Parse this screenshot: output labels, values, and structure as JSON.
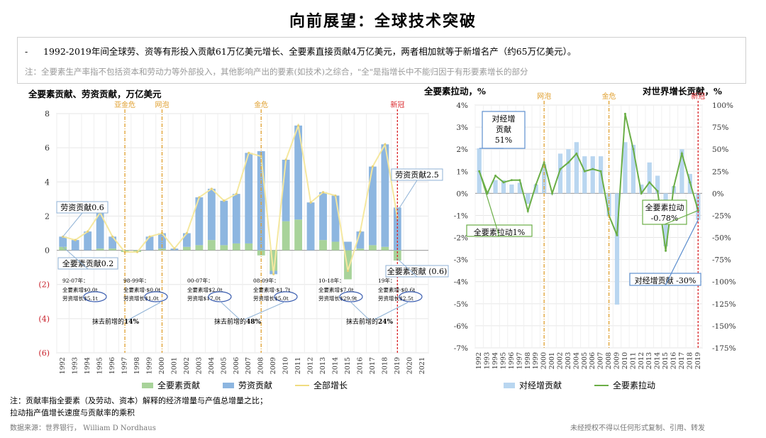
{
  "header": {
    "title": "向前展望：全球技术突破",
    "bullet": "-",
    "note_main": "1992-2019年间全球劳、资等有形投入贡献61万亿美元增长、全要素直接贡献4万亿美元，两者相加就等于新增名产（约65万亿美元）。",
    "note_gray": "注：全要素生产率指不包括资本和劳动力等外部投入，其他影响产出的要素(如技术)之综合，\"全\"是指增长中不能归因于有形要素增长的部分"
  },
  "colors": {
    "tfp_bar": "#a8d39a",
    "labor_bar": "#8db6e0",
    "total_line": "#f5e8a0",
    "tfp_line": "#6aae46",
    "contrib_bar": "#b9d6f0",
    "crisis": "#e0a030",
    "covid": "#d9262a"
  },
  "left_chart": {
    "title": "全要素贡献、劳资贡献，万亿美元",
    "events": [
      "亚金危",
      "网泡",
      "金危",
      "新冠"
    ],
    "y_tick_labels": [
      "8",
      "6",
      "4",
      "2",
      "0",
      "(2)",
      "(4)",
      "(6)"
    ],
    "callouts": {
      "labor": "劳资贡献0.6",
      "tfp": "全要素贡献0.2",
      "labor_end": "劳资贡献2.5",
      "tfp_end": "全要素贡献 (0.6)"
    },
    "periods": [
      {
        "title": "92-07年：",
        "tfp": "全要素增$0.0t",
        "labor": "劳资增长$5.1t"
      },
      {
        "title": "98-99年：",
        "tfp": "全要素增-$0.0t",
        "labor": "劳资增长$1.0t"
      },
      {
        "title": "00-07年：",
        "tfp": "全要素增$2.0t",
        "labor": "劳资增$17.0t"
      },
      {
        "title": "08-09年：",
        "tfp": "全要素增-$1.7t",
        "labor": "劳资增长$5.0t"
      },
      {
        "title": "10-18年：",
        "tfp": "全要素增$7.0t",
        "labor": "劳资增长$29.9t"
      },
      {
        "title": "19年：",
        "tfp": "全要素增-$0.6t",
        "labor": "劳资增长$2.5t"
      }
    ],
    "share_notes": [
      {
        "prefix": "抹去前增的",
        "value": "14%"
      },
      {
        "prefix": "抹去前增的",
        "value": "48%"
      },
      {
        "prefix": "抹去前增的",
        "value": "24%"
      }
    ]
  },
  "right_chart": {
    "title_left": "全要素拉动，%",
    "title_right": "对世界增长贡献，%",
    "events": [
      "网泡",
      "金危",
      "新冠"
    ],
    "y_left_labels": [
      "4%",
      "3%",
      "2%",
      "1%",
      "0%",
      "-1%",
      "-2%",
      "-3%",
      "-4%",
      "-5%",
      "-6%",
      "-7%"
    ],
    "y_right_labels": [
      "100%",
      "75%",
      "50%",
      "25%",
      "0%",
      "-25%",
      "-50%",
      "-75%",
      "-100%",
      "-125%",
      "-150%",
      "-175%"
    ],
    "callouts": {
      "contrib_start": "对经增贡献51%",
      "tfp_start": "全要素拉动1%",
      "tfp_end": "全要素拉动 -0.78%",
      "contrib_end": "对经增贡献 -30%"
    }
  },
  "legend_left": [
    "全要素贡献",
    "劳资贡献",
    "全部增长"
  ],
  "legend_right": [
    "对经增贡献",
    "全要素拉动"
  ],
  "footnotes": {
    "line1": "注：贡献率指全要素（及劳动、资本）解释的经济增量与产值总增量之比；",
    "line2": "拉动指产值增长速度与贡献率的乘积",
    "source": "数据来源：世界银行， William D Nordhaus",
    "disclaimer": "未经授权不得以任何形式复制、引用、转发"
  },
  "chart_data": [
    {
      "type": "bar",
      "title": "全要素贡献、劳资贡献，万亿美元",
      "categories": [
        "1992",
        "1993",
        "1994",
        "1995",
        "1996",
        "1997",
        "1998",
        "1999",
        "2000",
        "2001",
        "2002",
        "2003",
        "2004",
        "2005",
        "2006",
        "2007",
        "2008",
        "2009",
        "2010",
        "2011",
        "2012",
        "2013",
        "2014",
        "2015",
        "2016",
        "2017",
        "2018",
        "2019",
        "2020",
        "2021"
      ],
      "ylim": [
        -6,
        8
      ],
      "series": [
        {
          "name": "全要素贡献",
          "values": [
            0.2,
            0.0,
            0.0,
            0.1,
            0.1,
            -0.1,
            -0.1,
            0.0,
            0.1,
            0.0,
            0.2,
            0.3,
            0.6,
            0.3,
            0.4,
            0.4,
            -0.3,
            -1.2,
            1.7,
            1.8,
            0.0,
            0.6,
            0.5,
            -1.7,
            0.1,
            0.3,
            0.2,
            -0.6,
            null,
            null
          ]
        },
        {
          "name": "劳资贡献",
          "values": [
            0.6,
            0.6,
            1.1,
            2.1,
            0.7,
            0.0,
            0.0,
            0.8,
            0.9,
            0.1,
            0.8,
            2.8,
            3.0,
            2.6,
            2.9,
            5.3,
            5.8,
            -0.2,
            3.6,
            5.5,
            2.8,
            2.8,
            2.7,
            0.5,
            1.0,
            4.6,
            6.0,
            2.5,
            null,
            null
          ]
        },
        {
          "name": "全部增长",
          "values": [
            0.8,
            0.6,
            1.1,
            2.2,
            0.8,
            -0.1,
            -0.1,
            0.8,
            1.0,
            0.1,
            1.0,
            3.1,
            3.6,
            2.9,
            3.3,
            5.7,
            5.5,
            -1.4,
            5.3,
            7.3,
            2.8,
            3.4,
            3.2,
            -1.2,
            1.1,
            4.9,
            6.2,
            1.9,
            null,
            null
          ]
        }
      ],
      "events": [
        {
          "label": "亚金危",
          "x": "1997"
        },
        {
          "label": "网泡",
          "x": "2000"
        },
        {
          "label": "金危",
          "x": "2008"
        },
        {
          "label": "新冠",
          "x": "2019"
        }
      ],
      "legend": "bottom"
    },
    {
      "type": "bar",
      "title": "全要素拉动，%",
      "categories": [
        "1992",
        "1993",
        "1994",
        "1995",
        "1996",
        "1997",
        "1998",
        "1999",
        "2000",
        "2001",
        "2002",
        "2003",
        "2004",
        "2005",
        "2006",
        "2007",
        "2008",
        "2009",
        "2010",
        "2011",
        "2012",
        "2013",
        "2014",
        "2015",
        "2016",
        "2017",
        "2018",
        "2019"
      ],
      "series": [
        {
          "name": "对经增贡献",
          "axis": "right",
          "values": [
            51,
            2,
            15,
            15,
            10,
            12,
            -12,
            10,
            33,
            -1,
            45,
            50,
            58,
            42,
            42,
            42,
            -26,
            -126,
            58,
            55,
            10,
            35,
            20,
            -60,
            8,
            50,
            22,
            -30
          ]
        },
        {
          "name": "全要素拉动",
          "axis": "left",
          "values": [
            1.0,
            0.0,
            0.8,
            0.5,
            0.6,
            0.6,
            -0.8,
            0.4,
            1.4,
            0.0,
            1.1,
            1.4,
            1.8,
            1.0,
            1.1,
            1.0,
            -1.0,
            -1.9,
            3.6,
            2.0,
            0.0,
            0.5,
            0.1,
            -2.6,
            0.3,
            1.8,
            0.5,
            -0.78
          ]
        }
      ],
      "y_left_range": [
        -7,
        4
      ],
      "y_right_range": [
        -175,
        100
      ],
      "events": [
        {
          "label": "网泡",
          "x": "2000"
        },
        {
          "label": "金危",
          "x": "2008"
        },
        {
          "label": "新冠",
          "x": "2019"
        }
      ],
      "legend": "bottom"
    }
  ]
}
